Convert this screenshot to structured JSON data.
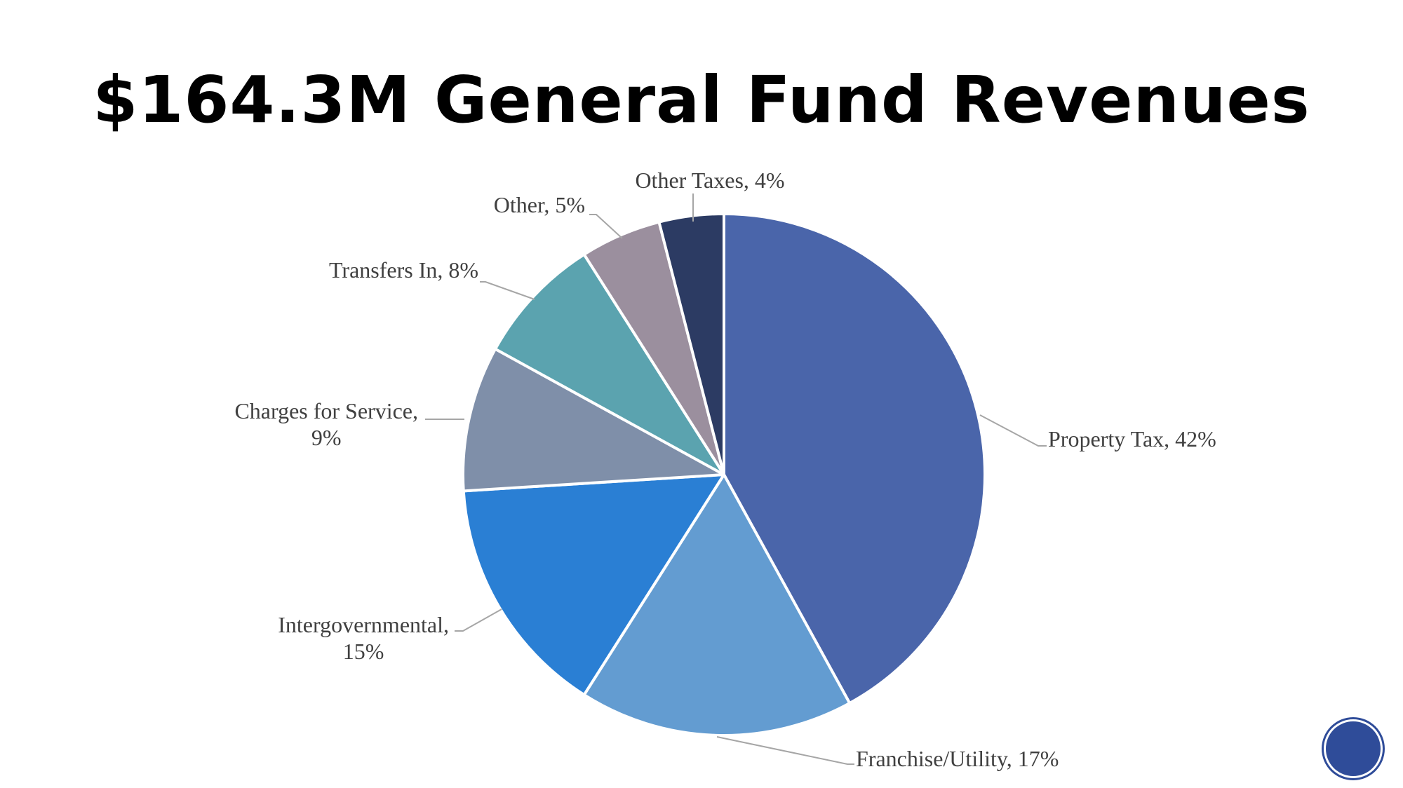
{
  "chart_data": {
    "type": "pie",
    "title": "$164.3M General Fund Revenues",
    "slices": [
      {
        "label_lines": [
          "Property Tax, 42%"
        ],
        "value": 42,
        "color": "#4a65aa"
      },
      {
        "label_lines": [
          "Franchise/Utility, 17%"
        ],
        "value": 17,
        "color": "#639cd1"
      },
      {
        "label_lines": [
          "Intergovernmental,",
          "15%"
        ],
        "value": 15,
        "color": "#2a7fd4"
      },
      {
        "label_lines": [
          "Charges for Service,",
          "9%"
        ],
        "value": 9,
        "color": "#7f8fa9"
      },
      {
        "label_lines": [
          "Transfers In, 8%"
        ],
        "value": 8,
        "color": "#5ba3af"
      },
      {
        "label_lines": [
          "Other, 5%"
        ],
        "value": 5,
        "color": "#9b8f9e"
      },
      {
        "label_lines": [
          "Other Taxes, 4%"
        ],
        "value": 4,
        "color": "#2c3b63"
      }
    ],
    "legend": "none"
  },
  "icons": {
    "logo": "city-seal-icon"
  }
}
